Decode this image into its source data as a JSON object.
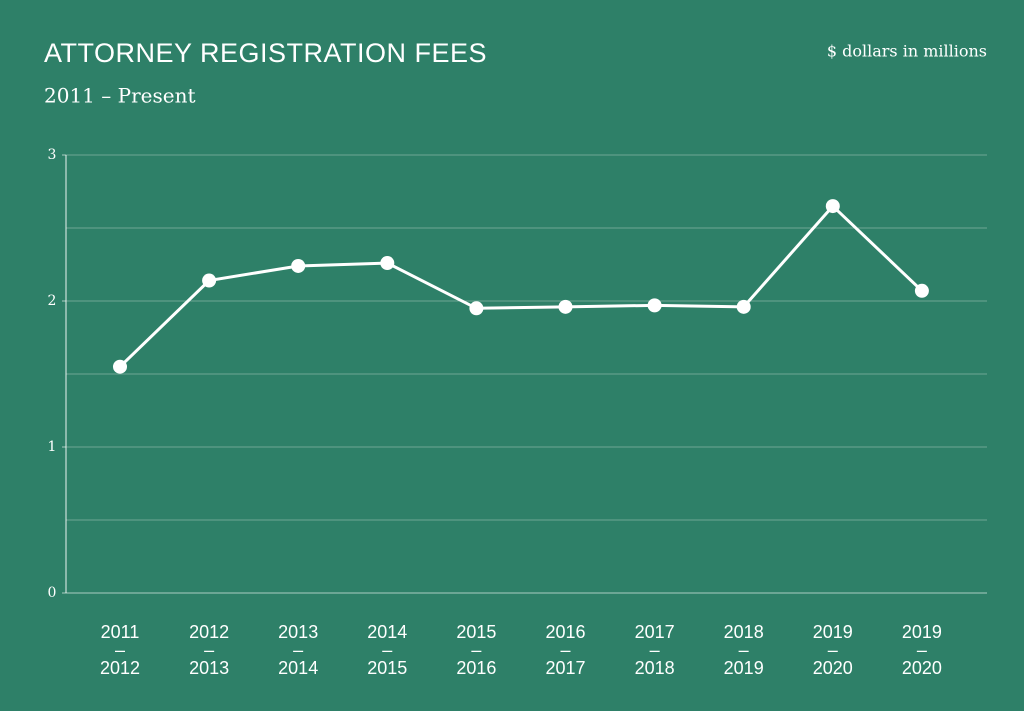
{
  "chart_data": {
    "type": "line",
    "title": "ATTORNEY REGISTRATION FEES",
    "subtitle": "2011 – Present",
    "unit_note": "$ dollars in millions",
    "categories": [
      "2011\n–\n2012",
      "2012\n–\n2013",
      "2013\n–\n2014",
      "2014\n–\n2015",
      "2015\n–\n2016",
      "2016\n–\n2017",
      "2017\n–\n2018",
      "2018\n–\n2019",
      "2019\n–\n2020",
      "2019\n–\n2020"
    ],
    "values": [
      1.55,
      2.14,
      2.24,
      2.26,
      1.95,
      1.96,
      1.97,
      1.96,
      2.65,
      2.07
    ],
    "color": "#ffffff",
    "ylim": [
      0,
      3
    ],
    "yticks": [
      0,
      1,
      2,
      3
    ],
    "minor_yticks": [
      0.5,
      1.5,
      2.5
    ],
    "grid": true
  }
}
